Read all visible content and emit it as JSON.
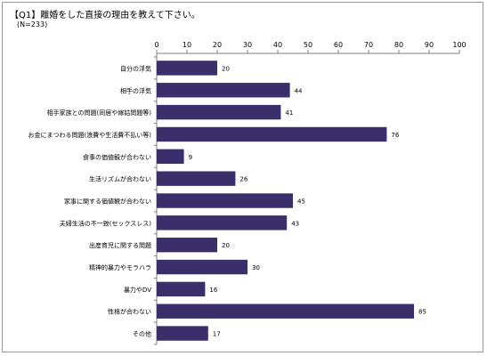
{
  "chart_data": {
    "type": "bar",
    "orientation": "horizontal",
    "title": "【Q1】離婚をした直接の理由を教えて下さい。",
    "subtitle": "(N=233)",
    "categories": [
      "自分の浮気",
      "相手の浮気",
      "相手家族との問題(同居や嫁姑問題等)",
      "お金にまつわる問題(浪費や生活費不払い等)",
      "食事の価値観が合わない",
      "生活リズムが合わない",
      "家事に関する価値観が合わない",
      "夫婦生活の不一致(セックスレス)",
      "出産育児に関する問題",
      "精神的暴力やモラハラ",
      "暴力やDV",
      "性格が合わない",
      "その他"
    ],
    "values": [
      20,
      44,
      41,
      76,
      9,
      26,
      45,
      43,
      20,
      30,
      16,
      85,
      17
    ],
    "xlim": [
      0,
      100
    ],
    "xticks": [
      "0",
      "10",
      "20",
      "30",
      "40",
      "50",
      "60",
      "70",
      "80",
      "90",
      "100"
    ],
    "axis_position": "top",
    "grid": false,
    "bar_color": "#3a2f6b"
  }
}
